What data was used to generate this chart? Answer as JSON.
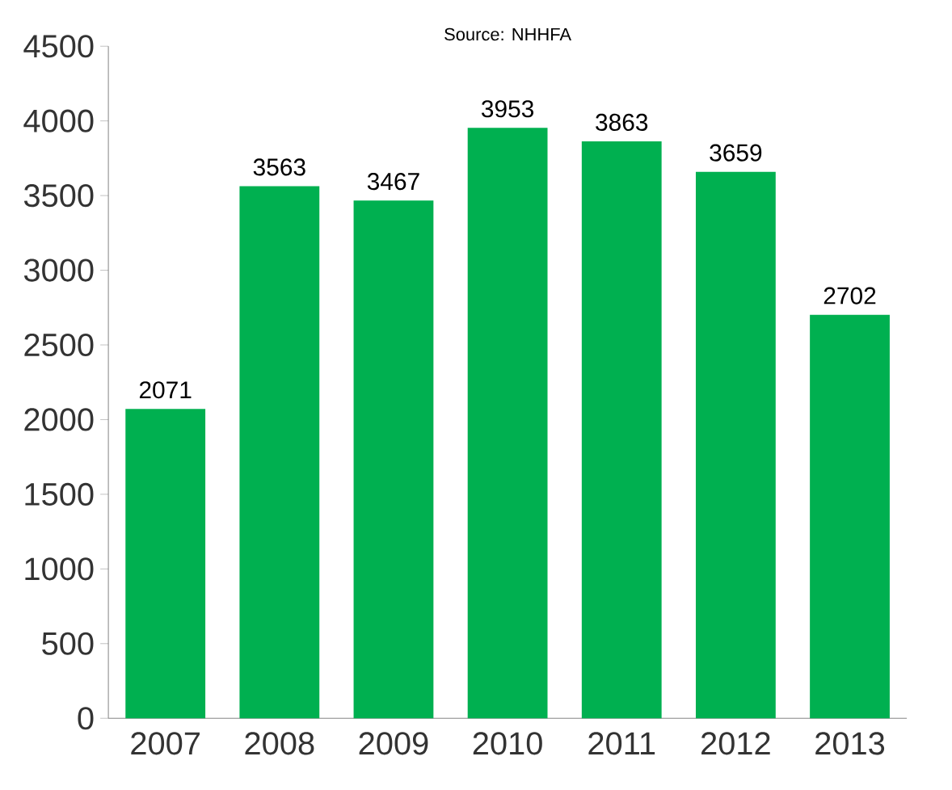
{
  "chart_data": {
    "type": "bar",
    "categories": [
      "2007",
      "2008",
      "2009",
      "2010",
      "2011",
      "2012",
      "2013"
    ],
    "values": [
      2071,
      3563,
      3467,
      3953,
      3863,
      3659,
      2702
    ],
    "color": "#00b050",
    "data_labels": true,
    "ylim": [
      0,
      4500
    ],
    "yticks": [
      0,
      500,
      1000,
      1500,
      2000,
      2500,
      3000,
      3500,
      4000,
      4500
    ],
    "annotations": [
      "Source: NHHFA"
    ]
  }
}
